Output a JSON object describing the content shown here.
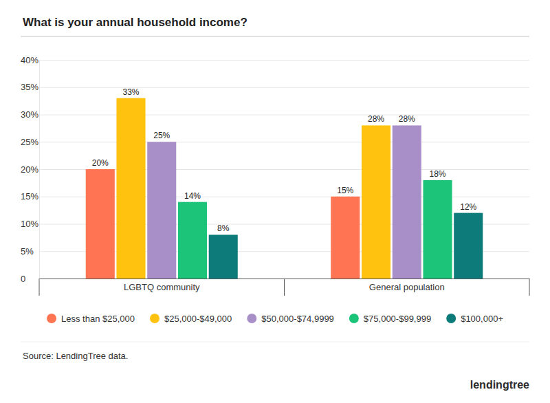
{
  "chart_data": {
    "type": "bar",
    "title": "What is your annual household income?",
    "categories": [
      "LGBTQ community",
      "General population"
    ],
    "series": [
      {
        "name": "Less than $25,000",
        "color": "#ff7452",
        "values": [
          20,
          15
        ],
        "value_labels": [
          "20%",
          "15%"
        ]
      },
      {
        "name": "$25,000-$49,000",
        "color": "#ffc20e",
        "values": [
          33,
          28
        ],
        "value_labels": [
          "33%",
          "28%"
        ]
      },
      {
        "name": "$50,000-$74,9999",
        "color": "#a98fc8",
        "values": [
          25,
          28
        ],
        "value_labels": [
          "25%",
          "28%"
        ]
      },
      {
        "name": "$75,000-$99,999",
        "color": "#1cc47a",
        "values": [
          14,
          18
        ],
        "value_labels": [
          "14%",
          "18%"
        ]
      },
      {
        "name": "$100,000+",
        "color": "#0e7b7b",
        "values": [
          8,
          12
        ],
        "value_labels": [
          "8%",
          "12%"
        ]
      }
    ],
    "ylim": [
      0,
      40
    ],
    "yticks": [
      0,
      {
        "value": 5,
        "label": "5%"
      },
      {
        "value": 10,
        "label": "10%"
      },
      {
        "value": 15,
        "label": "15%"
      },
      {
        "value": 20,
        "label": "20%"
      },
      {
        "value": 25,
        "label": "25%"
      },
      {
        "value": 30,
        "label": "30%"
      },
      {
        "value": 35,
        "label": "35%"
      },
      {
        "value": 40,
        "label": "40%"
      }
    ],
    "grid": true,
    "legend": "bottom",
    "data_labels": true,
    "source": "Source: LendingTree data.",
    "logo": "lendingtree"
  }
}
